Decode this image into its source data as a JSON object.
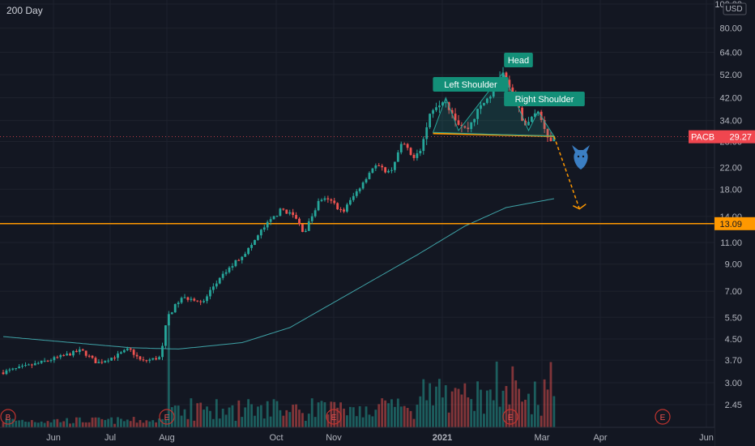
{
  "study_label": "200 Day",
  "currency": "USD",
  "colors": {
    "background": "#131722",
    "up": "#26a69a",
    "down": "#ef5350",
    "ma_line": "#3fa3a7",
    "support": "#ff9800",
    "neckline": "#ff9800",
    "pattern_label": "#138f78",
    "price_tag": "#f0464f",
    "bear_icon": "#3b7fc4"
  },
  "price_tag": {
    "symbol": "PACB",
    "value": "29.27",
    "price": 29.27
  },
  "support_tag": {
    "value": "13.09",
    "price": 13.09
  },
  "pattern_labels": [
    {
      "id": "left-shoulder",
      "text": "Left Shoulder"
    },
    {
      "id": "head",
      "text": "Head"
    },
    {
      "id": "right-shoulder",
      "text": "Right Shoulder"
    }
  ],
  "event_markers": [
    "B",
    "E",
    "E",
    "E",
    "E"
  ],
  "chart_data": {
    "type": "candlestick",
    "y_scale": "log",
    "ylim": [
      2.1,
      100
    ],
    "y_ticks": [
      "2.45",
      "3.00",
      "3.70",
      "4.50",
      "5.50",
      "7.00",
      "9.00",
      "11.00",
      "14.00",
      "18.00",
      "22.00",
      "28.00",
      "34.00",
      "42.00",
      "52.00",
      "64.00",
      "80.00",
      "100.00"
    ],
    "x_ticks": [
      "Jun",
      "Jul",
      "Aug",
      "Oct",
      "Nov",
      "2021",
      "Mar",
      "Apr",
      "Jun"
    ],
    "price_anchors": [
      [
        0,
        3.3
      ],
      [
        10,
        3.55
      ],
      [
        18,
        3.8
      ],
      [
        25,
        4.05
      ],
      [
        30,
        3.6
      ],
      [
        36,
        3.85
      ],
      [
        40,
        4.1
      ],
      [
        44,
        3.65
      ],
      [
        50,
        3.8
      ],
      [
        52,
        5.5
      ],
      [
        56,
        6.5
      ],
      [
        60,
        6.6
      ],
      [
        63,
        6.2
      ],
      [
        66,
        7.2
      ],
      [
        72,
        8.8
      ],
      [
        78,
        10.5
      ],
      [
        82,
        12.5
      ],
      [
        88,
        15.0
      ],
      [
        92,
        14.0
      ],
      [
        95,
        12.0
      ],
      [
        100,
        16.5
      ],
      [
        104,
        16.0
      ],
      [
        107,
        14.5
      ],
      [
        112,
        18.0
      ],
      [
        117,
        22.5
      ],
      [
        122,
        21.0
      ],
      [
        126,
        28.0
      ],
      [
        129,
        24.0
      ],
      [
        132,
        27.0
      ],
      [
        135,
        38.0
      ],
      [
        139,
        42.0
      ],
      [
        143,
        34.0
      ],
      [
        146,
        31.0
      ],
      [
        150,
        38.0
      ],
      [
        154,
        44.0
      ],
      [
        157,
        53.0
      ],
      [
        160,
        44.0
      ],
      [
        163,
        36.0
      ],
      [
        165,
        32.0
      ],
      [
        168,
        38.0
      ],
      [
        171,
        31.0
      ],
      [
        173,
        27.0
      ]
    ],
    "ma_anchors": [
      [
        0,
        4.6
      ],
      [
        40,
        4.15
      ],
      [
        55,
        4.1
      ],
      [
        75,
        4.35
      ],
      [
        90,
        5.0
      ],
      [
        110,
        7.0
      ],
      [
        130,
        9.8
      ],
      [
        145,
        12.8
      ],
      [
        158,
        15.2
      ],
      [
        173,
        16.5
      ]
    ],
    "support_level": 13.09,
    "neckline": {
      "from": [
        135,
        30.2
      ],
      "to": [
        173,
        29.4
      ]
    },
    "projection": {
      "from": [
        173,
        29.4
      ],
      "to": [
        181,
        15.0
      ]
    },
    "bars": 174
  }
}
